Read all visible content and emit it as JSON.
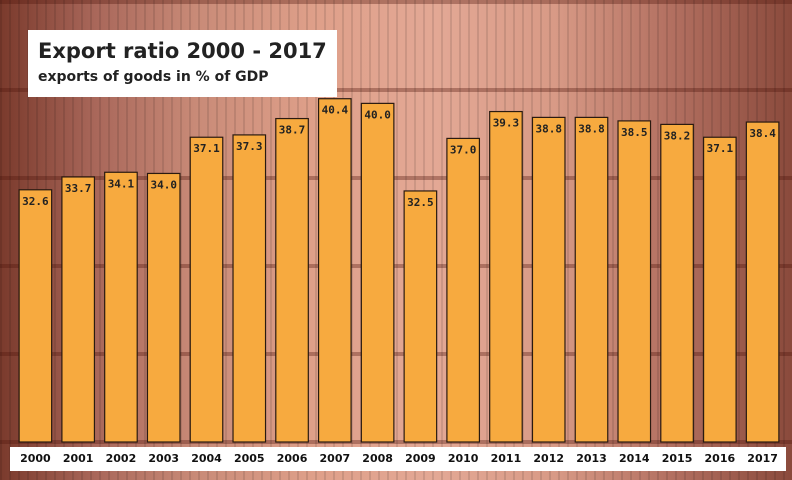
{
  "chart_data": {
    "type": "bar",
    "title": "Export ratio 2000 - 2017",
    "subtitle": "exports of goods in % of GDP",
    "categories": [
      "2000",
      "2001",
      "2002",
      "2003",
      "2004",
      "2005",
      "2006",
      "2007",
      "2008",
      "2009",
      "2010",
      "2011",
      "2012",
      "2013",
      "2014",
      "2015",
      "2016",
      "2017"
    ],
    "values": [
      32.6,
      33.7,
      34.1,
      34.0,
      37.1,
      37.3,
      38.7,
      40.4,
      40.0,
      32.5,
      37.0,
      39.3,
      38.8,
      38.8,
      38.5,
      38.2,
      37.1,
      38.4
    ],
    "value_labels": [
      "32.6",
      "33.7",
      "34.1",
      "34.0",
      "37.1",
      "37.3",
      "38.7",
      "40.4",
      "40.0",
      "32.5",
      "37.0",
      "39.3",
      "38.8",
      "38.8",
      "38.5",
      "38.2",
      "37.1",
      "38.4"
    ],
    "color": "#f7aa3f",
    "ylim": [
      11,
      45
    ]
  }
}
